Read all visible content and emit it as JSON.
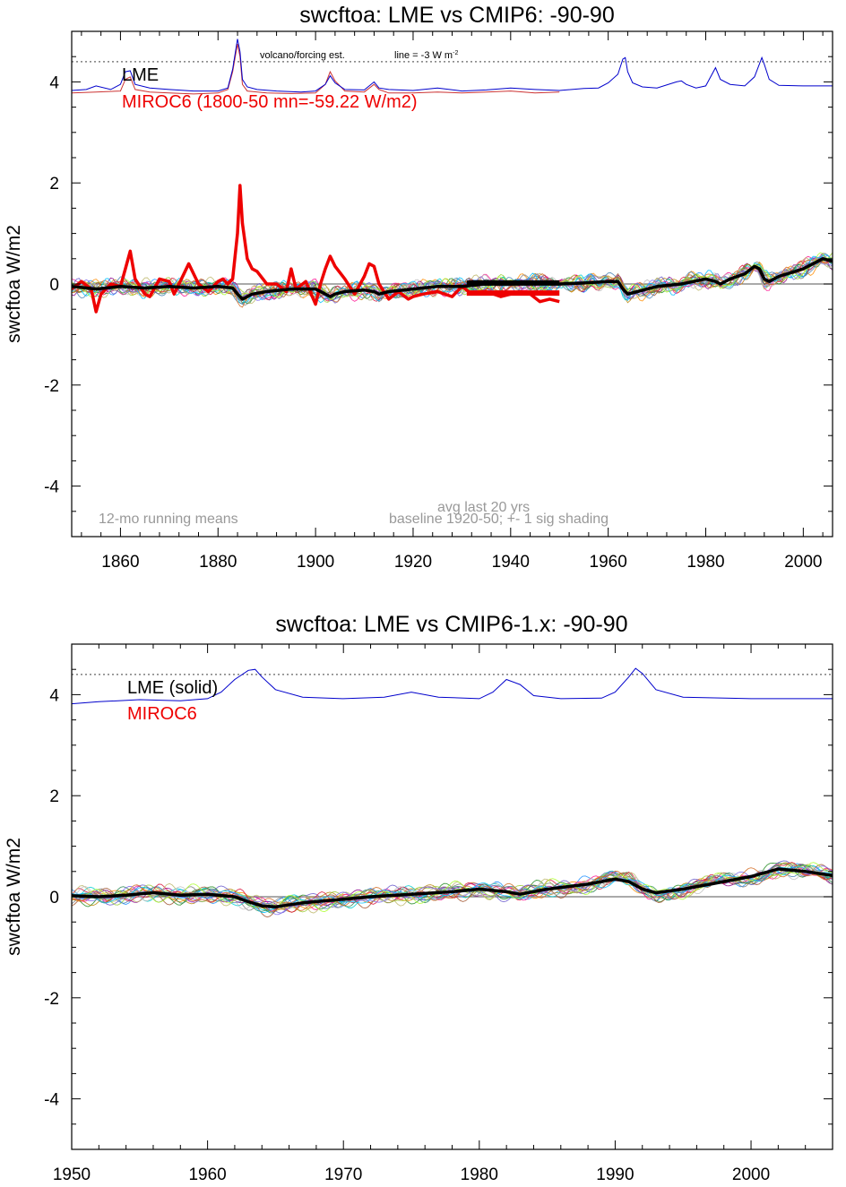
{
  "chart_data": [
    {
      "type": "line",
      "title": "swcftoa: LME vs CMIP6: -90-90",
      "ylabel": "swcftoa W/m2",
      "xlim": [
        1850,
        2006
      ],
      "ylim": [
        -5,
        5
      ],
      "x_ticks": [
        1860,
        1880,
        1900,
        1920,
        1940,
        1960,
        1980,
        2000
      ],
      "x_tick_labels": [
        "1860",
        "1880",
        "1900",
        "1920",
        "1940",
        "1960",
        "1980",
        "2000"
      ],
      "y_ticks": [
        -4,
        -2,
        0,
        2,
        4
      ],
      "y_tick_labels": [
        "-4",
        "-2",
        "0",
        "2",
        "4"
      ],
      "legend": [
        {
          "label": "LME",
          "color": "#000000"
        },
        {
          "label": "MIROC6 (1800-50 mn=-59.22 W/m2)",
          "color": "#ee0000"
        }
      ],
      "annotations": {
        "top_left": "volcano/forcing est.",
        "top_right": "line = -3 W m",
        "top_right_sup": "-2",
        "bottom_left": "12-mo running means",
        "bottom_right_1": "avg last 20 yrs",
        "bottom_right_2": "baseline 1920-50; +- 1 sig shading"
      },
      "reference_line": 4.4,
      "zero_line": 0,
      "volcano_forcing": {
        "color": "#0000cc",
        "x": [
          1850,
          1853,
          1855,
          1858,
          1860,
          1861,
          1862,
          1863,
          1866,
          1870,
          1875,
          1880,
          1882,
          1883,
          1884,
          1884.5,
          1885,
          1886,
          1888,
          1892,
          1897,
          1900,
          1902,
          1903,
          1904,
          1906,
          1910,
          1912,
          1913,
          1915,
          1920,
          1925,
          1930,
          1935,
          1940,
          1945,
          1950,
          1955,
          1958,
          1960,
          1962,
          1963,
          1963.5,
          1964,
          1965,
          1967,
          1970,
          1974,
          1975,
          1976,
          1978,
          1980,
          1982,
          1983,
          1985,
          1988,
          1990,
          1991.5,
          1992,
          1993,
          1995,
          2000,
          2005,
          2006
        ],
        "y": [
          3.83,
          3.85,
          3.92,
          3.85,
          3.95,
          4.2,
          4.22,
          3.95,
          3.88,
          3.85,
          3.82,
          3.82,
          3.88,
          4.25,
          4.85,
          4.6,
          4.05,
          3.9,
          3.85,
          3.82,
          3.8,
          3.82,
          3.95,
          4.12,
          3.98,
          3.85,
          3.84,
          4.0,
          3.88,
          3.85,
          3.83,
          3.88,
          3.82,
          3.84,
          3.88,
          3.85,
          3.83,
          3.87,
          3.88,
          3.98,
          4.15,
          4.45,
          4.48,
          4.2,
          3.98,
          3.9,
          3.88,
          4.0,
          4.02,
          3.95,
          3.88,
          3.92,
          4.28,
          4.05,
          3.95,
          3.92,
          4.1,
          4.48,
          4.35,
          4.05,
          3.93,
          3.92,
          3.92,
          3.92
        ]
      },
      "miroc6_forcing": {
        "color": "#cc3333",
        "x": [
          1850,
          1855,
          1860,
          1861,
          1862,
          1863,
          1866,
          1870,
          1875,
          1880,
          1882,
          1883,
          1884,
          1884.5,
          1885,
          1886,
          1890,
          1895,
          1900,
          1902,
          1903,
          1904,
          1906,
          1910,
          1912,
          1913,
          1915,
          1920,
          1925,
          1930,
          1935,
          1940,
          1945,
          1950
        ],
        "y": [
          3.78,
          3.8,
          3.82,
          4.05,
          4.1,
          3.85,
          3.8,
          3.78,
          3.76,
          3.78,
          3.85,
          4.2,
          4.75,
          4.5,
          3.95,
          3.82,
          3.78,
          3.77,
          3.78,
          3.95,
          4.2,
          4.02,
          3.82,
          3.8,
          3.95,
          3.85,
          3.78,
          3.78,
          3.8,
          3.78,
          3.8,
          3.82,
          3.78,
          3.8
        ]
      },
      "lme_mean": {
        "color": "#000000",
        "x": [
          1850,
          1855,
          1860,
          1865,
          1870,
          1875,
          1880,
          1883,
          1884,
          1885,
          1887,
          1890,
          1895,
          1900,
          1902,
          1903,
          1904,
          1906,
          1910,
          1912,
          1913,
          1915,
          1920,
          1925,
          1930,
          1935,
          1940,
          1945,
          1950,
          1955,
          1960,
          1962,
          1963,
          1964,
          1966,
          1968,
          1970,
          1975,
          1980,
          1982,
          1983,
          1985,
          1988,
          1990,
          1991,
          1992,
          1993,
          1995,
          2000,
          2002,
          2004,
          2006
        ],
        "y": [
          -0.05,
          -0.1,
          -0.05,
          -0.08,
          -0.05,
          -0.08,
          -0.05,
          -0.08,
          -0.2,
          -0.3,
          -0.2,
          -0.15,
          -0.1,
          -0.1,
          -0.2,
          -0.25,
          -0.2,
          -0.15,
          -0.12,
          -0.15,
          -0.2,
          -0.15,
          -0.1,
          -0.05,
          -0.05,
          0.0,
          0.0,
          0.02,
          0.0,
          0.02,
          0.05,
          0.05,
          -0.1,
          -0.2,
          -0.15,
          -0.1,
          -0.05,
          0.0,
          0.1,
          0.05,
          0.0,
          0.1,
          0.2,
          0.35,
          0.3,
          0.1,
          0.05,
          0.15,
          0.3,
          0.4,
          0.5,
          0.45
        ]
      },
      "miroc6_thick": {
        "color": "#ee0000",
        "x": [
          1850,
          1852,
          1854,
          1855,
          1856,
          1858,
          1860,
          1861,
          1862,
          1863,
          1865,
          1866,
          1868,
          1870,
          1871,
          1872,
          1873,
          1874,
          1876,
          1878,
          1880,
          1881,
          1882,
          1883,
          1884,
          1884.5,
          1885,
          1886,
          1887,
          1888,
          1890,
          1892,
          1894,
          1895,
          1896,
          1898,
          1900,
          1901,
          1902,
          1903,
          1904,
          1906,
          1908,
          1910,
          1911,
          1912,
          1913,
          1915,
          1917,
          1919,
          1920,
          1922,
          1925,
          1928,
          1930,
          1932,
          1935,
          1938,
          1940,
          1942,
          1944,
          1946,
          1948,
          1950
        ],
        "y": [
          -0.1,
          0.05,
          -0.1,
          -0.55,
          -0.2,
          0.0,
          -0.05,
          0.3,
          0.65,
          0.1,
          -0.2,
          -0.25,
          0.1,
          0.05,
          -0.2,
          0.0,
          0.2,
          0.4,
          0.0,
          -0.15,
          0.05,
          0.1,
          0.0,
          0.1,
          1.0,
          1.95,
          1.2,
          0.5,
          0.3,
          0.25,
          0.0,
          0.0,
          -0.15,
          0.3,
          -0.1,
          0.05,
          -0.4,
          0.0,
          0.3,
          0.55,
          0.35,
          0.1,
          -0.2,
          0.15,
          0.4,
          0.35,
          0.0,
          -0.3,
          -0.15,
          -0.3,
          -0.25,
          -0.2,
          -0.15,
          -0.25,
          -0.05,
          -0.2,
          -0.15,
          -0.25,
          -0.2,
          -0.15,
          -0.2,
          -0.35,
          -0.3,
          -0.35
        ]
      },
      "lme_avg_bar": {
        "x": [
          1931,
          1950
        ],
        "y": 0.02,
        "color": "#000000"
      },
      "miroc6_avg_bar": {
        "x": [
          1931,
          1950
        ],
        "y": -0.18,
        "color": "#ee0000"
      }
    },
    {
      "type": "line",
      "title": "swcftoa: LME vs CMIP6-1.x: -90-90",
      "ylabel": "swcftoa W/m2",
      "xlim": [
        1950,
        2006
      ],
      "ylim": [
        -5,
        5
      ],
      "x_ticks": [
        1950,
        1960,
        1970,
        1980,
        1990,
        2000
      ],
      "x_tick_labels": [
        "1950",
        "1960",
        "1970",
        "1980",
        "1990",
        "2000"
      ],
      "y_ticks": [
        -4,
        -2,
        0,
        2,
        4
      ],
      "y_tick_labels": [
        "-4",
        "-2",
        "0",
        "2",
        "4"
      ],
      "legend": [
        {
          "label": "LME (solid)",
          "color": "#000000"
        },
        {
          "label": "MIROC6",
          "color": "#ee0000"
        }
      ],
      "reference_line": 4.4,
      "zero_line": 0,
      "volcano_forcing": {
        "color": "#0000cc",
        "x": [
          1950,
          1952,
          1955,
          1958,
          1960,
          1961,
          1962,
          1963,
          1963.5,
          1964,
          1965,
          1967,
          1970,
          1973,
          1975,
          1977,
          1980,
          1981,
          1982,
          1983,
          1984,
          1986,
          1989,
          1990,
          1991,
          1991.5,
          1992,
          1993,
          1995,
          2000,
          2006
        ],
        "y": [
          3.82,
          3.86,
          3.9,
          3.88,
          3.92,
          4.05,
          4.3,
          4.48,
          4.5,
          4.35,
          4.1,
          3.95,
          3.92,
          3.95,
          4.05,
          3.95,
          3.92,
          4.05,
          4.3,
          4.2,
          3.98,
          3.92,
          3.93,
          4.05,
          4.35,
          4.52,
          4.42,
          4.1,
          3.95,
          3.92,
          3.92
        ]
      },
      "lme_mean": {
        "color": "#000000",
        "x": [
          1950,
          1952,
          1954,
          1956,
          1958,
          1960,
          1962,
          1963,
          1964,
          1965,
          1967,
          1970,
          1972,
          1975,
          1978,
          1980,
          1982,
          1983,
          1985,
          1988,
          1990,
          1991,
          1992,
          1993,
          1995,
          1998,
          2000,
          2002,
          2004,
          2006
        ],
        "y": [
          0.02,
          0.0,
          0.03,
          0.08,
          0.03,
          0.05,
          0.0,
          -0.1,
          -0.18,
          -0.2,
          -0.12,
          -0.05,
          0.0,
          0.05,
          0.1,
          0.15,
          0.1,
          0.05,
          0.15,
          0.25,
          0.35,
          0.3,
          0.15,
          0.08,
          0.15,
          0.3,
          0.4,
          0.55,
          0.5,
          0.42
        ]
      }
    }
  ]
}
